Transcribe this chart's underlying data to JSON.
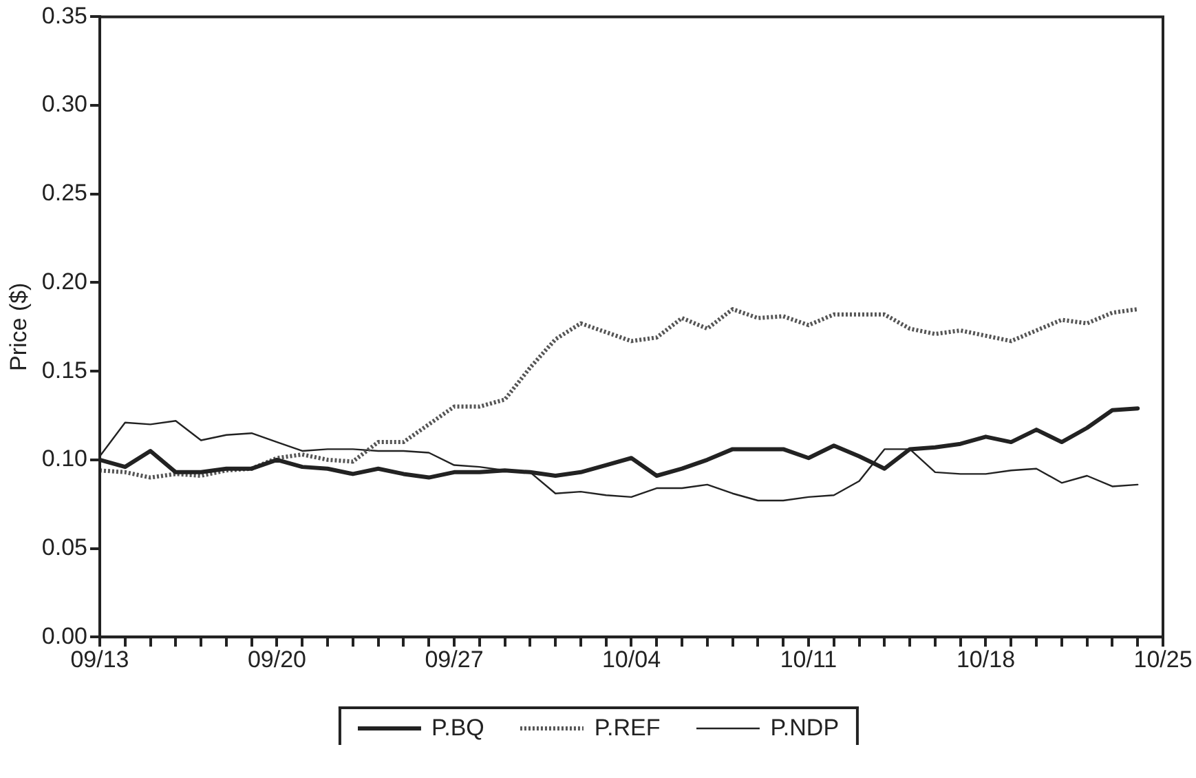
{
  "chart_data": {
    "type": "line",
    "ylabel": "Price ($)",
    "x": [
      "--09-13",
      "--09-14",
      "--09-15",
      "--09-16",
      "--09-17",
      "--09-18",
      "--09-19",
      "--09-20",
      "--09-21",
      "--09-22",
      "--09-23",
      "--09-24",
      "--09-25",
      "--09-26",
      "--09-27",
      "--09-28",
      "--09-29",
      "--09-30",
      "--10-01",
      "--10-02",
      "--10-03",
      "--10-04",
      "--10-05",
      "--10-06",
      "--10-07",
      "--10-08",
      "--10-09",
      "--10-10",
      "--10-11",
      "--10-12",
      "--10-13",
      "--10-14",
      "--10-15",
      "--10-16",
      "--10-17",
      "--10-18",
      "--10-19",
      "--10-20",
      "--10-21",
      "--10-22",
      "--10-23",
      "--10-24"
    ],
    "series": [
      {
        "name": "P.BQ",
        "color": "#222222",
        "line_style": "solid",
        "values": [
          0.1,
          0.096,
          0.105,
          0.093,
          0.093,
          0.095,
          0.095,
          0.1,
          0.096,
          0.095,
          0.092,
          0.095,
          0.092,
          0.09,
          0.093,
          0.093,
          0.094,
          0.093,
          0.091,
          0.093,
          0.097,
          0.101,
          0.091,
          0.095,
          0.1,
          0.106,
          0.106,
          0.106,
          0.101,
          0.108,
          0.102,
          0.095,
          0.106,
          0.107,
          0.109,
          0.113,
          0.11,
          0.117,
          0.11,
          0.118,
          0.128,
          0.129
        ]
      },
      {
        "name": "P.REF",
        "color": "#555555",
        "line_style": "dotted",
        "values": [
          0.094,
          0.093,
          0.09,
          0.092,
          0.091,
          0.094,
          0.095,
          0.101,
          0.103,
          0.1,
          0.099,
          0.11,
          0.11,
          0.12,
          0.13,
          0.13,
          0.134,
          0.152,
          0.168,
          0.177,
          0.172,
          0.167,
          0.169,
          0.18,
          0.174,
          0.185,
          0.18,
          0.181,
          0.176,
          0.182,
          0.182,
          0.182,
          0.174,
          0.171,
          0.173,
          0.17,
          0.167,
          0.173,
          0.179,
          0.177,
          0.183,
          0.185
        ]
      },
      {
        "name": "P.NDP",
        "color": "#222222",
        "line_style": "solid",
        "values": [
          0.102,
          0.121,
          0.12,
          0.122,
          0.111,
          0.114,
          0.115,
          0.11,
          0.105,
          0.106,
          0.106,
          0.105,
          0.105,
          0.104,
          0.097,
          0.096,
          0.094,
          0.093,
          0.081,
          0.082,
          0.08,
          0.079,
          0.084,
          0.084,
          0.086,
          0.081,
          0.077,
          0.077,
          0.079,
          0.08,
          0.088,
          0.106,
          0.106,
          0.093,
          0.092,
          0.092,
          0.094,
          0.095,
          0.087,
          0.091,
          0.085,
          0.086
        ]
      }
    ],
    "xlim": [
      "--09-13",
      "--10-25"
    ],
    "xticks": [
      {
        "value": "--09-13",
        "label": "09/13"
      },
      {
        "value": "--09-14",
        "label": null
      },
      {
        "value": "--09-15",
        "label": null
      },
      {
        "value": "--09-16",
        "label": null
      },
      {
        "value": "--09-17",
        "label": null
      },
      {
        "value": "--09-18",
        "label": null
      },
      {
        "value": "--09-19",
        "label": null
      },
      {
        "value": "--09-20",
        "label": "09/20"
      },
      {
        "value": "--09-21",
        "label": null
      },
      {
        "value": "--09-22",
        "label": null
      },
      {
        "value": "--09-23",
        "label": null
      },
      {
        "value": "--09-24",
        "label": null
      },
      {
        "value": "--09-25",
        "label": null
      },
      {
        "value": "--09-26",
        "label": null
      },
      {
        "value": "--09-27",
        "label": "09/27"
      },
      {
        "value": "--09-28",
        "label": null
      },
      {
        "value": "--09-29",
        "label": null
      },
      {
        "value": "--09-30",
        "label": null
      },
      {
        "value": "--10-01",
        "label": null
      },
      {
        "value": "--10-02",
        "label": null
      },
      {
        "value": "--10-03",
        "label": null
      },
      {
        "value": "--10-04",
        "label": "10/04"
      },
      {
        "value": "--10-05",
        "label": null
      },
      {
        "value": "--10-06",
        "label": null
      },
      {
        "value": "--10-07",
        "label": null
      },
      {
        "value": "--10-08",
        "label": null
      },
      {
        "value": "--10-09",
        "label": null
      },
      {
        "value": "--10-10",
        "label": null
      },
      {
        "value": "--10-11",
        "label": "10/11"
      },
      {
        "value": "--10-12",
        "label": null
      },
      {
        "value": "--10-13",
        "label": null
      },
      {
        "value": "--10-14",
        "label": null
      },
      {
        "value": "--10-15",
        "label": null
      },
      {
        "value": "--10-16",
        "label": null
      },
      {
        "value": "--10-17",
        "label": null
      },
      {
        "value": "--10-18",
        "label": "10/18"
      },
      {
        "value": "--10-19",
        "label": null
      },
      {
        "value": "--10-20",
        "label": null
      },
      {
        "value": "--10-21",
        "label": null
      },
      {
        "value": "--10-22",
        "label": null
      },
      {
        "value": "--10-23",
        "label": null
      },
      {
        "value": "--10-24",
        "label": null
      },
      {
        "value": "--10-25",
        "label": "10/25"
      }
    ],
    "ylim": [
      0,
      0.35
    ],
    "yticks": [
      {
        "value": 0,
        "label": "0.00"
      },
      {
        "value": 0.05,
        "label": "0.05"
      },
      {
        "value": 0.1,
        "label": "0.10"
      },
      {
        "value": 0.15,
        "label": "0.15"
      },
      {
        "value": 0.2,
        "label": "0.20"
      },
      {
        "value": 0.25,
        "label": "0.25"
      },
      {
        "value": 0.3,
        "label": "0.30"
      },
      {
        "value": 0.35,
        "label": "0.35"
      }
    ],
    "grid": false,
    "legend": "bottom",
    "marker": "none"
  }
}
